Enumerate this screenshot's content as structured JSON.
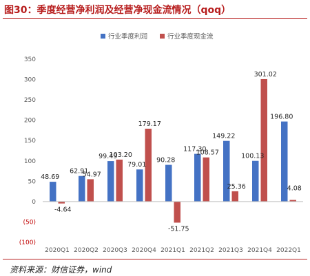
{
  "header": {
    "title": "图30：季度经营净利润及经营净现金流情况（qoq）"
  },
  "footer": {
    "source": "资料来源：财信证券，wind"
  },
  "chart_data": {
    "type": "bar",
    "categories": [
      "2020Q1",
      "2020Q2",
      "2020Q3",
      "2020Q4",
      "2021Q1",
      "2021Q2",
      "2021Q3",
      "2021Q4",
      "2022Q1"
    ],
    "series": [
      {
        "name": "行业季度利润",
        "color": "#4472c4",
        "values": [
          48.69,
          62.91,
          99.49,
          79.01,
          90.28,
          117.3,
          149.22,
          100.13,
          196.8
        ]
      },
      {
        "name": "行业季度现金流",
        "color": "#c0504d",
        "values": [
          -4.64,
          54.97,
          103.2,
          179.17,
          -51.75,
          108.57,
          25.36,
          301.02,
          4.08
        ]
      }
    ],
    "series_labels": [
      [
        "48.69",
        "62.91",
        "99.49",
        "79.01",
        "90.28",
        "117.30",
        "149.22",
        "100.13",
        "196.80"
      ],
      [
        "-4.64",
        "54.97",
        "103.20",
        "179.17",
        "-51.75",
        "108.57",
        "25.36",
        "301.02",
        "4.08"
      ]
    ],
    "y_ticks": [
      {
        "value": 350,
        "label": "350"
      },
      {
        "value": 300,
        "label": "300"
      },
      {
        "value": 250,
        "label": "250"
      },
      {
        "value": 200,
        "label": "200"
      },
      {
        "value": 150,
        "label": "150"
      },
      {
        "value": 100,
        "label": "100"
      },
      {
        "value": 50,
        "label": "50"
      },
      {
        "value": 0,
        "label": "0"
      },
      {
        "value": -50,
        "label": "(50)"
      },
      {
        "value": -100,
        "label": "(100)"
      }
    ],
    "ylim": [
      -100,
      350
    ],
    "grid": false,
    "legend_position": "top-center",
    "title": "",
    "xlabel": "",
    "ylabel": ""
  }
}
